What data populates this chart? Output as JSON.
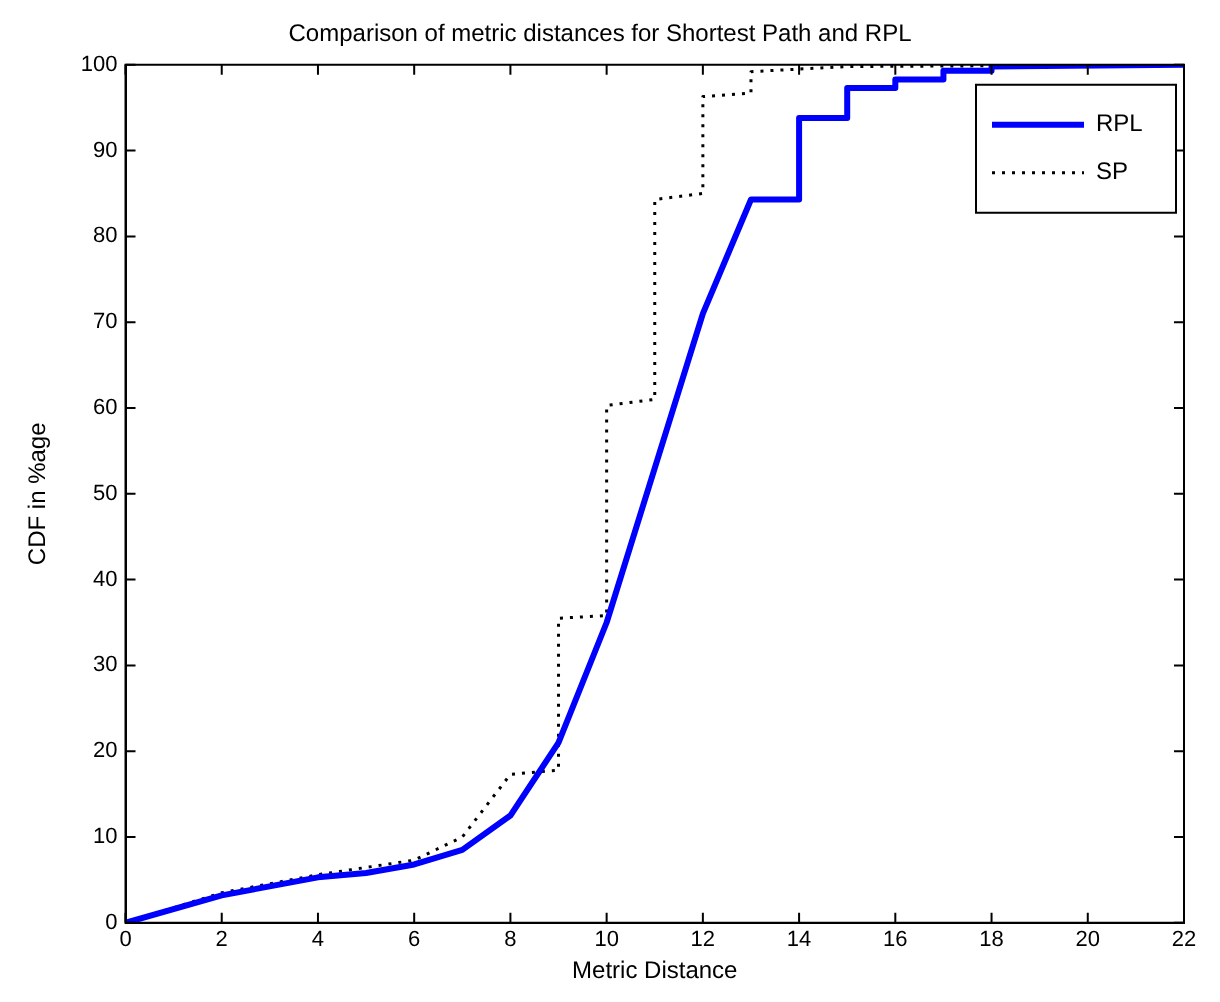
{
  "chart_data": {
    "type": "line",
    "title": "Comparison of metric distances for Shortest Path and RPL",
    "xlabel": "Metric Distance",
    "ylabel": "CDF in %age",
    "xlim": [
      0,
      22
    ],
    "xticks": [
      0,
      2,
      4,
      6,
      8,
      10,
      12,
      14,
      16,
      18,
      20,
      22
    ],
    "ylim": [
      0,
      100
    ],
    "yticks": [
      0,
      10,
      20,
      30,
      40,
      50,
      60,
      70,
      80,
      90,
      100
    ],
    "grid": false,
    "legend": "top right",
    "marker": "none",
    "series": [
      {
        "name": "RPL",
        "color": "#0000ff",
        "line_style": "solid",
        "x": [
          0,
          2,
          4,
          5,
          6,
          7,
          8,
          9,
          10,
          11,
          12,
          13,
          14,
          14,
          15,
          15,
          16,
          16,
          17,
          17,
          18,
          18,
          22
        ],
        "values": [
          0,
          3.2,
          5.3,
          5.8,
          6.8,
          8.5,
          12.5,
          21,
          35,
          53,
          71,
          84.3,
          84.3,
          93.8,
          93.8,
          97.3,
          97.3,
          98.3,
          98.3,
          99.3,
          99.3,
          99.8,
          100
        ]
      },
      {
        "name": "SP",
        "color": "#000000",
        "line_style": "dotted",
        "x": [
          0,
          2,
          4,
          6,
          7,
          8,
          9,
          9,
          10,
          10,
          11,
          11,
          12,
          12,
          13,
          13,
          14,
          15,
          22
        ],
        "values": [
          0,
          3.5,
          5.6,
          7.3,
          10,
          17.3,
          17.8,
          35.5,
          35.8,
          60.3,
          61,
          84.3,
          85,
          96.3,
          96.7,
          99.2,
          99.5,
          99.8,
          100
        ]
      }
    ]
  }
}
